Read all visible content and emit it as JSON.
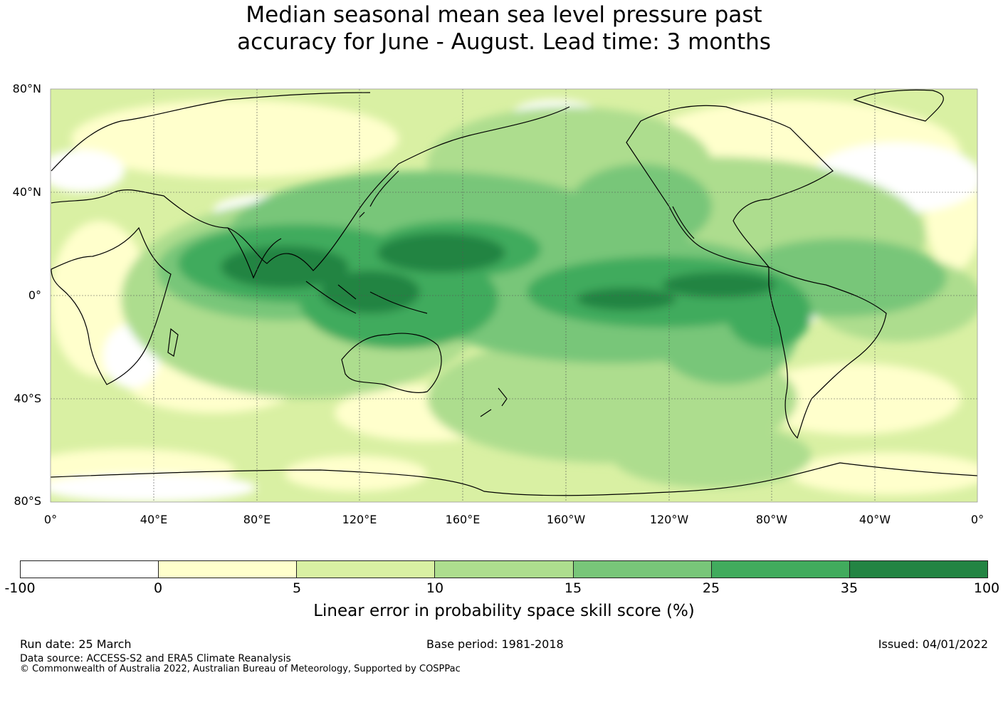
{
  "title": {
    "line1": "Median seasonal mean sea level pressure past",
    "line2": "accuracy for June - August. Lead time: 3 months"
  },
  "map": {
    "lat_labels": [
      "80°N",
      "40°N",
      "0°",
      "40°S",
      "80°S"
    ],
    "lon_labels": [
      "0°",
      "40°E",
      "80°E",
      "120°E",
      "160°E",
      "160°W",
      "120°W",
      "80°W",
      "40°W",
      "0°"
    ]
  },
  "colorbar": {
    "ticks": [
      "-100",
      "0",
      "5",
      "10",
      "15",
      "25",
      "35",
      "100"
    ],
    "colors": [
      "#ffffff",
      "#ffffcc",
      "#d9f0a3",
      "#addd8e",
      "#78c679",
      "#41ab5d",
      "#238443"
    ],
    "label": "Linear error in probability space skill score (%)"
  },
  "footer": {
    "run_date": "Run date: 25 March",
    "base_period": "Base period: 1981-2018",
    "issued": "Issued: 04/01/2022",
    "data_source": "Data source: ACCESS-S2 and ERA5 Climate Reanalysis",
    "copyright": "© Commonwealth of Australia 2022, Australian Bureau of Meteorology, Supported by COSPPac"
  }
}
